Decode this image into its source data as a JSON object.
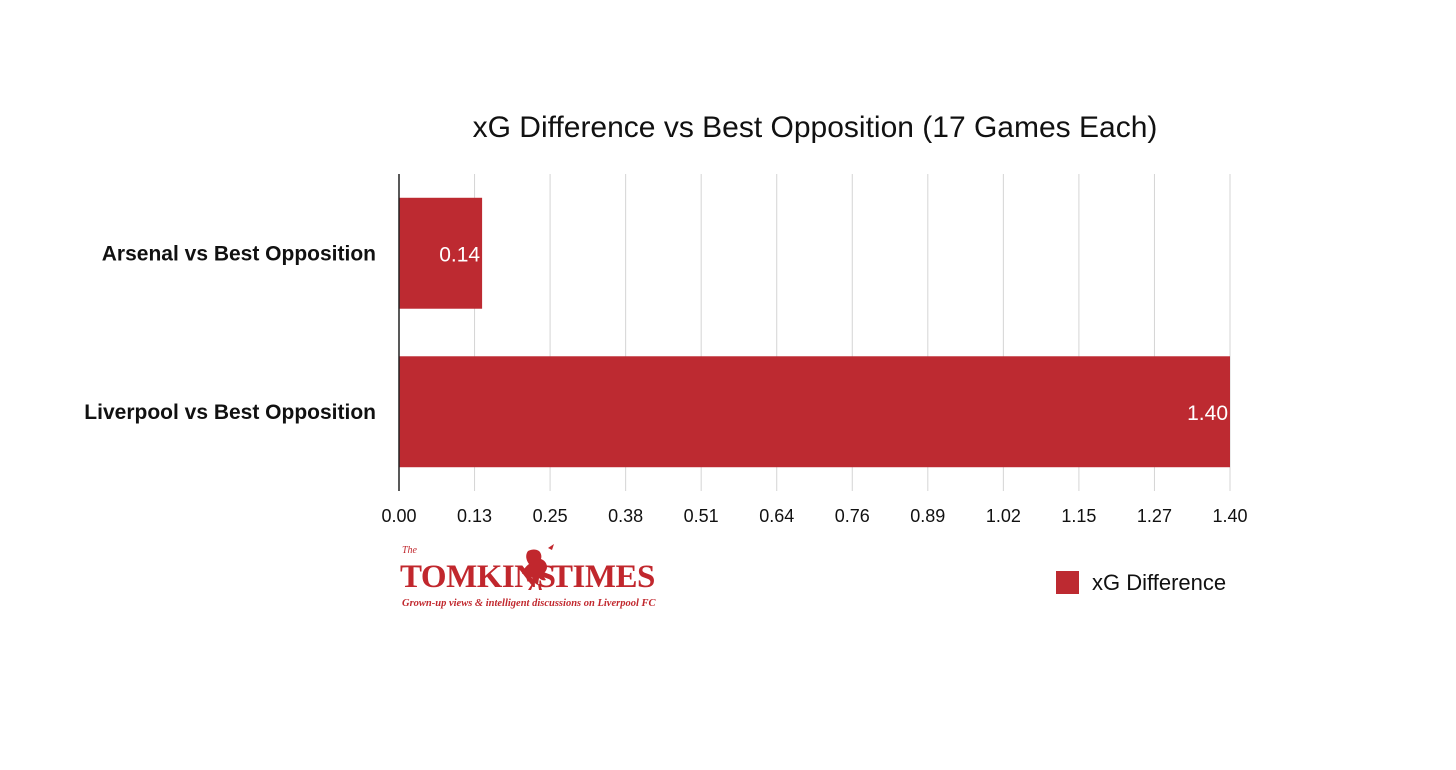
{
  "chart_data": {
    "type": "bar",
    "orientation": "horizontal",
    "title": "xG Difference vs Best Opposition (17 Games Each)",
    "categories": [
      "Arsenal vs Best Opposition",
      "Liverpool vs Best Opposition"
    ],
    "series": [
      {
        "name": "xG Difference",
        "values": [
          0.14,
          1.4
        ]
      }
    ],
    "data_labels": [
      "0.14",
      "1.40"
    ],
    "xlim": [
      0,
      1.4
    ],
    "x_ticks": [
      "0.00",
      "0.13",
      "0.25",
      "0.38",
      "0.51",
      "0.64",
      "0.76",
      "0.89",
      "1.02",
      "1.15",
      "1.27",
      "1.40"
    ],
    "grid": true,
    "legend": "bottom-right",
    "bar_color": "#bd2a31"
  },
  "logo": {
    "the": "The",
    "word_left": "TOMKINS",
    "word_right": "TIMES",
    "tagline": "Grown-up views & intelligent discussions on Liverpool FC",
    "color": "#c1272d"
  }
}
